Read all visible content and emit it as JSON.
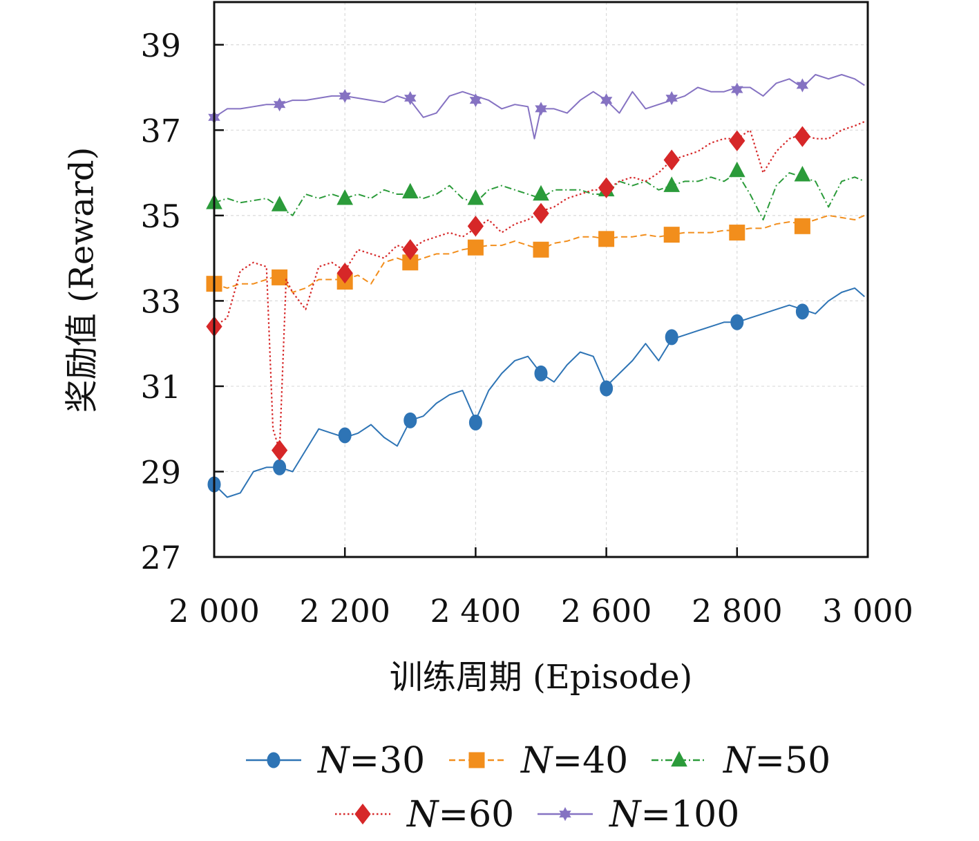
{
  "chart_data": {
    "type": "line",
    "xlabel": "训练周期 (Episode)",
    "ylabel": "奖励值 (Reward)",
    "xlim": [
      2000,
      3000
    ],
    "ylim": [
      27,
      40
    ],
    "xticks": [
      2000,
      2200,
      2400,
      2600,
      2800,
      3000
    ],
    "xtick_labels": [
      "2 000",
      "2 200",
      "2 400",
      "2 600",
      "2 800",
      "3 000"
    ],
    "yticks": [
      27,
      29,
      31,
      33,
      35,
      37,
      39
    ],
    "ytick_labels": [
      "27",
      "29",
      "31",
      "33",
      "35",
      "37",
      "39"
    ],
    "grid": true,
    "legend_position": "bottom",
    "series": [
      {
        "name": "N=30",
        "legend_n": "N",
        "legend_rest": "=30",
        "color": "#2e74b5",
        "marker": "circle",
        "linestyle": "solid",
        "x": [
          2000,
          2020,
          2040,
          2060,
          2080,
          2100,
          2120,
          2140,
          2160,
          2180,
          2200,
          2220,
          2240,
          2260,
          2280,
          2300,
          2320,
          2340,
          2360,
          2380,
          2400,
          2420,
          2440,
          2460,
          2480,
          2500,
          2520,
          2540,
          2560,
          2580,
          2600,
          2620,
          2640,
          2660,
          2680,
          2700,
          2720,
          2740,
          2760,
          2780,
          2800,
          2820,
          2840,
          2860,
          2880,
          2900,
          2920,
          2940,
          2960,
          2980,
          2995
        ],
        "y": [
          28.7,
          28.4,
          28.5,
          29.0,
          29.1,
          29.1,
          29.0,
          29.5,
          30.0,
          29.9,
          29.8,
          29.9,
          30.1,
          29.8,
          29.6,
          30.2,
          30.3,
          30.6,
          30.8,
          30.9,
          30.2,
          30.9,
          31.3,
          31.6,
          31.7,
          31.3,
          31.1,
          31.5,
          31.8,
          31.7,
          31.0,
          31.3,
          31.6,
          32.0,
          31.6,
          32.1,
          32.2,
          32.3,
          32.4,
          32.5,
          32.5,
          32.6,
          32.7,
          32.8,
          32.9,
          32.8,
          32.7,
          33.0,
          33.2,
          33.3,
          33.1
        ],
        "marker_x": [
          2000,
          2100,
          2200,
          2300,
          2400,
          2500,
          2600,
          2700,
          2800,
          2900
        ],
        "marker_y": [
          28.7,
          29.1,
          29.85,
          30.2,
          30.15,
          31.3,
          30.95,
          32.15,
          32.5,
          32.75
        ]
      },
      {
        "name": "N=40",
        "legend_n": "N",
        "legend_rest": "=40",
        "color": "#f28e1c",
        "marker": "square",
        "linestyle": "dashed",
        "x": [
          2000,
          2020,
          2040,
          2060,
          2080,
          2100,
          2120,
          2140,
          2160,
          2180,
          2200,
          2220,
          2240,
          2260,
          2280,
          2300,
          2320,
          2340,
          2360,
          2380,
          2400,
          2420,
          2440,
          2460,
          2480,
          2500,
          2520,
          2540,
          2560,
          2580,
          2600,
          2620,
          2640,
          2660,
          2680,
          2700,
          2720,
          2740,
          2760,
          2780,
          2800,
          2820,
          2840,
          2860,
          2880,
          2900,
          2920,
          2940,
          2960,
          2980,
          2995
        ],
        "y": [
          33.4,
          33.3,
          33.4,
          33.4,
          33.5,
          33.6,
          33.2,
          33.3,
          33.5,
          33.5,
          33.5,
          33.6,
          33.4,
          33.9,
          34.0,
          33.9,
          34.0,
          34.1,
          34.1,
          34.2,
          34.25,
          34.3,
          34.3,
          34.4,
          34.3,
          34.2,
          34.35,
          34.4,
          34.5,
          34.5,
          34.45,
          34.5,
          34.5,
          34.55,
          34.5,
          34.55,
          34.6,
          34.6,
          34.6,
          34.65,
          34.65,
          34.7,
          34.7,
          34.8,
          34.85,
          34.8,
          34.9,
          35.0,
          34.95,
          34.9,
          35.0
        ],
        "marker_x": [
          2000,
          2100,
          2200,
          2300,
          2400,
          2500,
          2600,
          2700,
          2800,
          2900
        ],
        "marker_y": [
          33.4,
          33.55,
          33.45,
          33.9,
          34.25,
          34.2,
          34.45,
          34.55,
          34.6,
          34.75
        ]
      },
      {
        "name": "N=50",
        "legend_n": "N",
        "legend_rest": "=50",
        "color": "#2b9b3a",
        "marker": "triangle",
        "linestyle": "dashdot",
        "x": [
          2000,
          2020,
          2040,
          2060,
          2080,
          2100,
          2120,
          2140,
          2160,
          2180,
          2200,
          2220,
          2240,
          2260,
          2280,
          2300,
          2320,
          2340,
          2360,
          2380,
          2400,
          2420,
          2440,
          2460,
          2480,
          2500,
          2520,
          2540,
          2560,
          2580,
          2600,
          2620,
          2640,
          2660,
          2680,
          2700,
          2720,
          2740,
          2760,
          2780,
          2800,
          2820,
          2840,
          2860,
          2880,
          2900,
          2920,
          2940,
          2960,
          2980,
          2995
        ],
        "y": [
          35.3,
          35.4,
          35.3,
          35.35,
          35.4,
          35.2,
          35.0,
          35.5,
          35.4,
          35.5,
          35.4,
          35.5,
          35.4,
          35.6,
          35.5,
          35.5,
          35.4,
          35.5,
          35.7,
          35.4,
          35.3,
          35.6,
          35.7,
          35.6,
          35.5,
          35.4,
          35.6,
          35.6,
          35.6,
          35.5,
          35.5,
          35.8,
          35.7,
          35.8,
          35.6,
          35.7,
          35.8,
          35.8,
          35.9,
          35.8,
          36.0,
          35.5,
          34.9,
          35.7,
          36.0,
          35.9,
          35.8,
          35.2,
          35.8,
          35.9,
          35.8
        ],
        "marker_x": [
          2000,
          2100,
          2200,
          2300,
          2400,
          2500,
          2600,
          2700,
          2800,
          2900
        ],
        "marker_y": [
          35.3,
          35.25,
          35.4,
          35.55,
          35.4,
          35.5,
          35.6,
          35.7,
          36.05,
          35.95
        ]
      },
      {
        "name": "N=60",
        "legend_n": "N",
        "legend_rest": "=60",
        "color": "#d62728",
        "marker": "diamond",
        "linestyle": "dotted",
        "x": [
          2000,
          2020,
          2040,
          2060,
          2080,
          2090,
          2100,
          2110,
          2120,
          2140,
          2160,
          2180,
          2200,
          2220,
          2240,
          2260,
          2280,
          2300,
          2320,
          2340,
          2360,
          2380,
          2400,
          2420,
          2440,
          2460,
          2480,
          2500,
          2520,
          2540,
          2560,
          2580,
          2600,
          2620,
          2640,
          2660,
          2680,
          2700,
          2720,
          2740,
          2760,
          2780,
          2800,
          2820,
          2840,
          2860,
          2880,
          2900,
          2920,
          2940,
          2960,
          2980,
          2995
        ],
        "y": [
          32.4,
          32.6,
          33.7,
          33.9,
          33.8,
          30.0,
          29.5,
          33.5,
          33.2,
          32.8,
          33.8,
          33.9,
          33.7,
          34.2,
          34.1,
          34.0,
          34.3,
          34.2,
          34.4,
          34.5,
          34.6,
          34.5,
          34.7,
          34.9,
          34.6,
          34.8,
          34.9,
          35.1,
          35.2,
          35.4,
          35.5,
          35.6,
          35.6,
          35.8,
          35.9,
          35.8,
          36.0,
          36.3,
          36.4,
          36.5,
          36.7,
          36.8,
          36.8,
          37.0,
          36.0,
          36.5,
          36.8,
          36.9,
          36.8,
          36.8,
          37.0,
          37.1,
          37.2
        ],
        "marker_x": [
          2000,
          2100,
          2200,
          2300,
          2400,
          2500,
          2600,
          2700,
          2800,
          2900
        ],
        "marker_y": [
          32.4,
          29.5,
          33.65,
          34.2,
          34.75,
          35.05,
          35.65,
          36.3,
          36.75,
          36.85
        ]
      },
      {
        "name": "N=100",
        "legend_n": "N",
        "legend_rest": "=100",
        "color": "#8572c2",
        "marker": "star",
        "linestyle": "solid",
        "x": [
          2000,
          2020,
          2040,
          2060,
          2080,
          2100,
          2120,
          2140,
          2160,
          2180,
          2200,
          2220,
          2240,
          2260,
          2280,
          2300,
          2320,
          2340,
          2360,
          2380,
          2400,
          2420,
          2440,
          2460,
          2480,
          2490,
          2500,
          2520,
          2540,
          2560,
          2580,
          2600,
          2620,
          2640,
          2660,
          2680,
          2700,
          2720,
          2740,
          2760,
          2780,
          2800,
          2820,
          2840,
          2860,
          2880,
          2900,
          2920,
          2940,
          2960,
          2980,
          2995
        ],
        "y": [
          37.3,
          37.5,
          37.5,
          37.55,
          37.6,
          37.6,
          37.7,
          37.7,
          37.75,
          37.8,
          37.8,
          37.75,
          37.7,
          37.65,
          37.8,
          37.7,
          37.3,
          37.4,
          37.8,
          37.9,
          37.8,
          37.7,
          37.5,
          37.6,
          37.55,
          36.8,
          37.5,
          37.5,
          37.4,
          37.7,
          37.9,
          37.7,
          37.4,
          37.9,
          37.5,
          37.6,
          37.7,
          37.8,
          38.0,
          37.9,
          37.9,
          38.0,
          38.0,
          37.8,
          38.1,
          38.2,
          38.0,
          38.3,
          38.2,
          38.3,
          38.2,
          38.05
        ],
        "marker_x": [
          2000,
          2100,
          2200,
          2300,
          2400,
          2500,
          2600,
          2700,
          2800,
          2900
        ],
        "marker_y": [
          37.3,
          37.6,
          37.8,
          37.75,
          37.7,
          37.5,
          37.7,
          37.75,
          37.95,
          38.05
        ]
      }
    ]
  }
}
